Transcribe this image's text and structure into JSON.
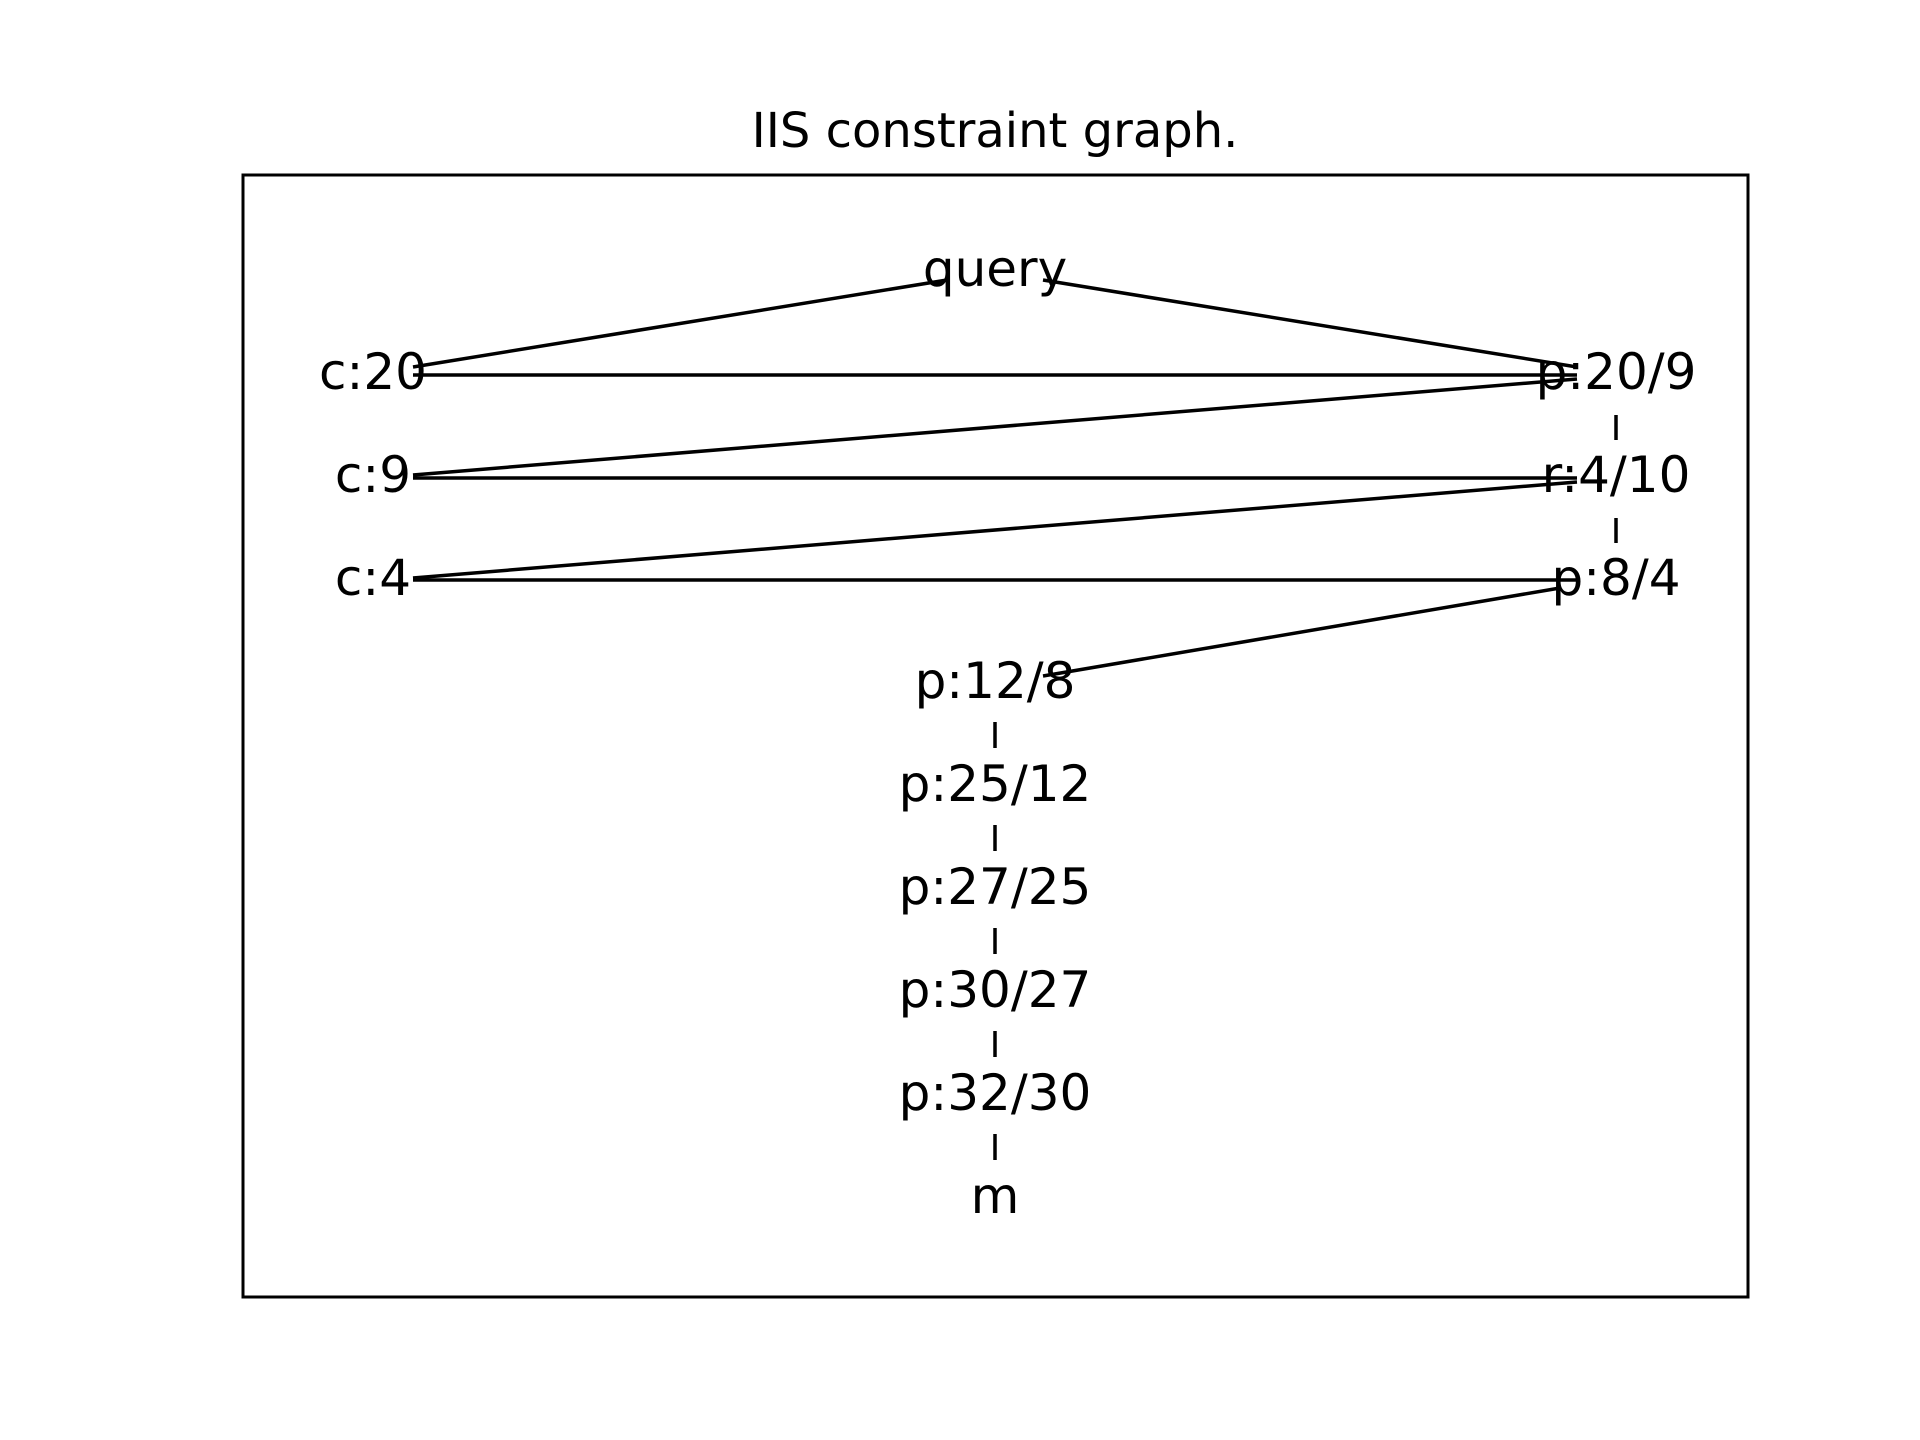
{
  "title": "IIS constraint graph.",
  "colors": {
    "background": "#ffffff",
    "ink": "#000000"
  },
  "nodes": [
    {
      "id": "query",
      "label": "query"
    },
    {
      "id": "c20",
      "label": "c:20"
    },
    {
      "id": "c9",
      "label": "c:9"
    },
    {
      "id": "c4",
      "label": "c:4"
    },
    {
      "id": "p20_9",
      "label": "p:20/9"
    },
    {
      "id": "r4_10",
      "label": "r:4/10"
    },
    {
      "id": "p8_4",
      "label": "p:8/4"
    },
    {
      "id": "p12_8",
      "label": "p:12/8"
    },
    {
      "id": "p25_12",
      "label": "p:25/12"
    },
    {
      "id": "p27_25",
      "label": "p:27/25"
    },
    {
      "id": "p30_27",
      "label": "p:30/27"
    },
    {
      "id": "p32_30",
      "label": "p:32/30"
    },
    {
      "id": "m",
      "label": "m"
    }
  ],
  "edges": [
    {
      "from": "query",
      "to": "c20"
    },
    {
      "from": "query",
      "to": "p20_9"
    },
    {
      "from": "c20",
      "to": "p20_9"
    },
    {
      "from": "c9",
      "to": "p20_9"
    },
    {
      "from": "c9",
      "to": "r4_10"
    },
    {
      "from": "c4",
      "to": "r4_10"
    },
    {
      "from": "c4",
      "to": "p8_4"
    },
    {
      "from": "p20_9",
      "to": "r4_10"
    },
    {
      "from": "r4_10",
      "to": "p8_4"
    },
    {
      "from": "p8_4",
      "to": "p12_8"
    },
    {
      "from": "p12_8",
      "to": "p25_12"
    },
    {
      "from": "p25_12",
      "to": "p27_25"
    },
    {
      "from": "p27_25",
      "to": "p30_27"
    },
    {
      "from": "p30_27",
      "to": "p32_30"
    },
    {
      "from": "p32_30",
      "to": "m"
    }
  ]
}
